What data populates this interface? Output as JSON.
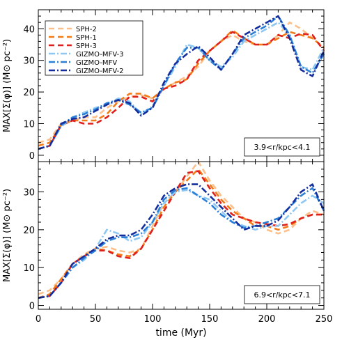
{
  "chart_data": [
    {
      "type": "line",
      "panel": "top",
      "annotation": "3.9<r/kpc<4.1",
      "xlim": [
        0,
        250
      ],
      "ylim": [
        -2,
        46
      ],
      "yticks": [
        0,
        10,
        20,
        30,
        40
      ],
      "xticks": [
        0,
        50,
        100,
        150,
        200,
        250
      ],
      "legend_position": "top-left",
      "ylabel": "MAX[Σ(φ)] (M⊙ pc⁻²)",
      "series": [
        {
          "name": "SPH-2",
          "color": "#fdbf8a",
          "dash": "dash",
          "x": [
            0,
            10,
            20,
            30,
            40,
            50,
            60,
            70,
            80,
            90,
            100,
            110,
            120,
            130,
            140,
            150,
            160,
            170,
            180,
            190,
            200,
            210,
            220,
            230,
            240,
            250
          ],
          "y": [
            4,
            5,
            10,
            11,
            12,
            12,
            15,
            17,
            18.5,
            19,
            18,
            21,
            23,
            25,
            28,
            33,
            36,
            38,
            36,
            35,
            35,
            38,
            42,
            40,
            37,
            34
          ]
        },
        {
          "name": "SPH-1",
          "color": "#f27a17",
          "dash": "dash",
          "x": [
            0,
            10,
            20,
            30,
            40,
            50,
            60,
            70,
            80,
            90,
            100,
            110,
            120,
            130,
            140,
            150,
            160,
            170,
            180,
            190,
            200,
            210,
            220,
            230,
            240,
            250
          ],
          "y": [
            3,
            4,
            9.5,
            11,
            11,
            11,
            13,
            17,
            19.5,
            19.5,
            18,
            21,
            23,
            24,
            29,
            33,
            36,
            39.5,
            37,
            35,
            35,
            37,
            39,
            38,
            37,
            34
          ]
        },
        {
          "name": "SPH-3",
          "color": "#e0201b",
          "dash": "dash",
          "x": [
            0,
            10,
            20,
            30,
            40,
            50,
            60,
            70,
            80,
            90,
            100,
            110,
            120,
            130,
            140,
            150,
            160,
            170,
            180,
            190,
            200,
            210,
            220,
            230,
            240,
            250
          ],
          "y": [
            2,
            3,
            9.5,
            11,
            10,
            10,
            12,
            15,
            18.5,
            18.5,
            17,
            21,
            22,
            24,
            30,
            33,
            36,
            39,
            37,
            35,
            35,
            38,
            37,
            38.5,
            38,
            33
          ]
        },
        {
          "name": "GIZMO-MFV-3",
          "color": "#8ec8f2",
          "dash": "dashdot",
          "x": [
            0,
            10,
            20,
            30,
            40,
            50,
            60,
            70,
            80,
            90,
            100,
            110,
            120,
            130,
            140,
            150,
            160,
            170,
            180,
            190,
            200,
            210,
            220,
            230,
            240,
            250
          ],
          "y": [
            2,
            3,
            9,
            12,
            13.5,
            15,
            16,
            18,
            17,
            13,
            15.5,
            22,
            28,
            35,
            34,
            30,
            28,
            31,
            36,
            38,
            40,
            42,
            38,
            28,
            27,
            34
          ]
        },
        {
          "name": "GIZMO-MFV",
          "color": "#2c7fd6",
          "dash": "dashdot",
          "x": [
            0,
            10,
            20,
            30,
            40,
            50,
            60,
            70,
            80,
            90,
            100,
            110,
            120,
            130,
            140,
            150,
            160,
            170,
            180,
            190,
            200,
            210,
            220,
            230,
            240,
            250
          ],
          "y": [
            2,
            3,
            9.5,
            12,
            13,
            14.5,
            16.5,
            17.5,
            16,
            13.5,
            15,
            22,
            29,
            34,
            34,
            30,
            27,
            32,
            37,
            39,
            41,
            44,
            38,
            28,
            26,
            32
          ]
        },
        {
          "name": "GIZMO-MFV-2",
          "color": "#142d9c",
          "dash": "dashdot",
          "x": [
            0,
            10,
            20,
            30,
            40,
            50,
            60,
            70,
            80,
            90,
            100,
            110,
            120,
            130,
            140,
            150,
            160,
            170,
            180,
            190,
            200,
            210,
            220,
            230,
            240,
            250
          ],
          "y": [
            2,
            3,
            10,
            11.5,
            12,
            14,
            16,
            17.5,
            16.5,
            12.5,
            15,
            23,
            29,
            32,
            34.5,
            31,
            27,
            32,
            38,
            40,
            42,
            44,
            37,
            27,
            25,
            33
          ]
        }
      ]
    },
    {
      "type": "line",
      "panel": "bottom",
      "annotation": "6.9<r/kpc<7.1",
      "xlim": [
        0,
        250
      ],
      "ylim": [
        -1,
        38
      ],
      "yticks": [
        0,
        10,
        20,
        30
      ],
      "xticks": [
        0,
        50,
        100,
        150,
        200,
        250
      ],
      "xlabel": "time (Myr)",
      "ylabel": "MAX[Σ(φ)] (M⊙ pc⁻²)",
      "series": [
        {
          "name": "SPH-2",
          "color": "#fdbf8a",
          "dash": "dash",
          "x": [
            0,
            10,
            20,
            30,
            40,
            50,
            60,
            70,
            80,
            90,
            100,
            110,
            120,
            130,
            140,
            150,
            160,
            170,
            180,
            190,
            200,
            210,
            220,
            230,
            240,
            250
          ],
          "y": [
            3,
            4,
            7,
            11,
            13.5,
            15,
            15.5,
            14.5,
            14,
            15,
            21,
            27,
            30,
            34,
            38,
            33,
            29,
            26,
            23,
            22,
            20,
            19,
            20,
            23,
            25,
            24
          ]
        },
        {
          "name": "SPH-1",
          "color": "#f27a17",
          "dash": "dash",
          "x": [
            0,
            10,
            20,
            30,
            40,
            50,
            60,
            70,
            80,
            90,
            100,
            110,
            120,
            130,
            140,
            150,
            160,
            170,
            180,
            190,
            200,
            210,
            220,
            230,
            240,
            250
          ],
          "y": [
            2,
            3,
            7,
            11,
            13,
            15,
            14.5,
            13.5,
            13,
            15,
            20,
            26,
            30,
            33,
            36,
            32,
            28,
            25,
            23,
            21,
            21,
            20,
            21,
            23,
            24,
            24
          ]
        },
        {
          "name": "SPH-3",
          "color": "#e0201b",
          "dash": "dash",
          "x": [
            0,
            10,
            20,
            30,
            40,
            50,
            60,
            70,
            80,
            90,
            100,
            110,
            120,
            130,
            140,
            150,
            160,
            170,
            180,
            190,
            200,
            210,
            220,
            230,
            240,
            250
          ],
          "y": [
            2,
            2.5,
            6,
            11,
            13,
            14.5,
            14.5,
            13,
            12.5,
            15,
            20,
            25,
            30,
            35,
            35.5,
            31,
            27,
            24,
            23,
            22,
            21.5,
            21,
            21.5,
            23,
            24,
            24
          ]
        },
        {
          "name": "GIZMO-MFV-3",
          "color": "#8ec8f2",
          "dash": "dashdot",
          "x": [
            0,
            10,
            20,
            30,
            40,
            50,
            60,
            70,
            80,
            90,
            100,
            110,
            120,
            130,
            140,
            150,
            160,
            170,
            180,
            190,
            200,
            210,
            220,
            230,
            240,
            250
          ],
          "y": [
            2,
            2.5,
            6,
            10,
            12,
            15,
            20,
            19,
            17,
            18,
            22,
            27,
            30,
            30.5,
            29,
            28,
            25,
            22,
            21,
            20,
            21,
            21,
            24,
            27,
            29,
            27
          ]
        },
        {
          "name": "GIZMO-MFV",
          "color": "#2c7fd6",
          "dash": "dashdot",
          "x": [
            0,
            10,
            20,
            30,
            40,
            50,
            60,
            70,
            80,
            90,
            100,
            110,
            120,
            130,
            140,
            150,
            160,
            170,
            180,
            190,
            200,
            210,
            220,
            230,
            240,
            250
          ],
          "y": [
            2,
            2.5,
            6,
            10,
            12.5,
            14.5,
            17,
            18,
            18,
            19,
            22,
            28,
            30.5,
            31,
            29,
            27,
            24,
            22,
            20.5,
            21,
            22,
            23,
            26,
            29,
            31,
            25
          ]
        },
        {
          "name": "GIZMO-MFV-2",
          "color": "#142d9c",
          "dash": "dashdot",
          "x": [
            0,
            10,
            20,
            30,
            40,
            50,
            60,
            70,
            80,
            90,
            100,
            110,
            120,
            130,
            140,
            150,
            160,
            170,
            180,
            190,
            200,
            210,
            220,
            230,
            240,
            250
          ],
          "y": [
            2,
            2.5,
            6,
            11,
            13,
            15,
            17.5,
            18.5,
            18.5,
            20,
            24,
            29,
            31,
            32,
            32,
            29,
            26,
            23,
            20,
            21,
            21,
            22.5,
            26,
            30,
            32,
            25
          ]
        }
      ]
    }
  ]
}
